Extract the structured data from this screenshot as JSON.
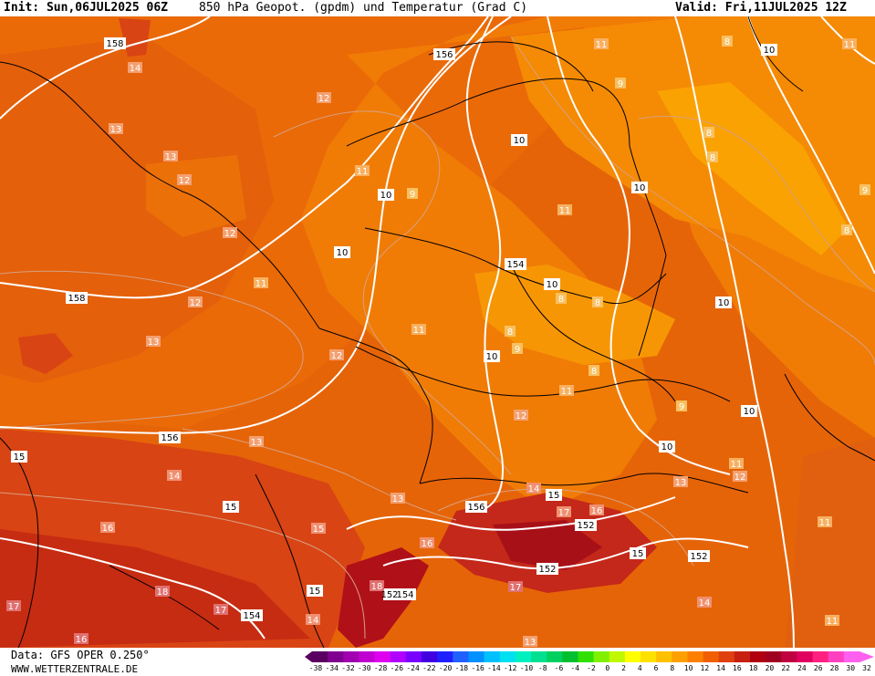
{
  "header": {
    "init": "Init: Sun,06JUL2025 06Z",
    "title": "850 hPa Geopot. (gpdm) und Temperatur (Grad C)",
    "valid": "Valid: Fri,11JUL2025 12Z"
  },
  "footer": {
    "data": "Data: GFS OPER 0.250°",
    "site": "WWW.WETTERZENTRALE.DE"
  },
  "colorbar": {
    "labels": [
      "-38",
      "-34",
      "-32",
      "-30",
      "-28",
      "-26",
      "-24",
      "-22",
      "-20",
      "-18",
      "-16",
      "-14",
      "-12",
      "-10",
      "-8",
      "-6",
      "-4",
      "-2",
      "0",
      "2",
      "4",
      "6",
      "8",
      "10",
      "12",
      "14",
      "16",
      "18",
      "20",
      "22",
      "24",
      "26",
      "28",
      "30",
      "32"
    ],
    "colors": [
      "#5a0060",
      "#800090",
      "#a000b0",
      "#c000d0",
      "#e000f0",
      "#b000ff",
      "#7a00ff",
      "#4000e0",
      "#2020ff",
      "#2060ff",
      "#0090ff",
      "#00c0ff",
      "#00e0f0",
      "#00f0c0",
      "#00e090",
      "#00d060",
      "#00c030",
      "#30e000",
      "#80f000",
      "#c0f800",
      "#ffff00",
      "#ffe000",
      "#ffc000",
      "#ffa000",
      "#ff8000",
      "#f06000",
      "#e04010",
      "#c82010",
      "#b00010",
      "#a00020",
      "#c00040",
      "#e00060",
      "#ff2080",
      "#ff40c0",
      "#ff60f0"
    ]
  },
  "geopotential_labels": [
    "158",
    "156",
    "156",
    "158",
    "156",
    "154",
    "154",
    "154",
    "152",
    "152",
    "152",
    "152",
    "15",
    "15",
    "15",
    "15",
    "15",
    "10",
    "10",
    "10",
    "10",
    "10",
    "10",
    "10",
    "10",
    "10",
    "10"
  ],
  "temperature_labels": [
    "14",
    "13",
    "13",
    "12",
    "12",
    "12",
    "12",
    "11",
    "11",
    "11",
    "11",
    "11",
    "12",
    "13",
    "13",
    "14",
    "15",
    "16",
    "17",
    "18",
    "16",
    "17",
    "17",
    "16",
    "16",
    "17",
    "18",
    "13",
    "13",
    "14",
    "14",
    "14",
    "13",
    "12",
    "12",
    "11",
    "11",
    "11",
    "11",
    "11",
    "9",
    "9",
    "9",
    "9",
    "9",
    "8",
    "8",
    "8",
    "8",
    "8",
    "8",
    "8",
    "8"
  ]
}
